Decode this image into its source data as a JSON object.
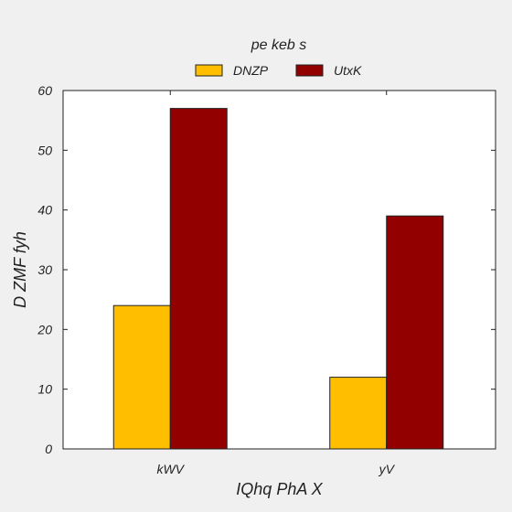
{
  "chart_data": {
    "type": "bar",
    "categories": [
      "kWV",
      "yV"
    ],
    "series": [
      {
        "name": "DNZP",
        "values": [
          24,
          12
        ],
        "color": "#ffbf00"
      },
      {
        "name": "UtxK",
        "values": [
          57,
          39
        ],
        "color": "#920000"
      }
    ],
    "xlabel": "IQhq PhA X",
    "ylabel": "D ZMF fyh",
    "ylim": [
      0,
      60
    ],
    "yticks": [
      0,
      10,
      20,
      30,
      40,
      50,
      60
    ],
    "legend_title": "pe keb s",
    "legend_position": "top-center",
    "grid": false,
    "background_color": "#f0f0f0",
    "plot_background_color": "#ffffff"
  }
}
